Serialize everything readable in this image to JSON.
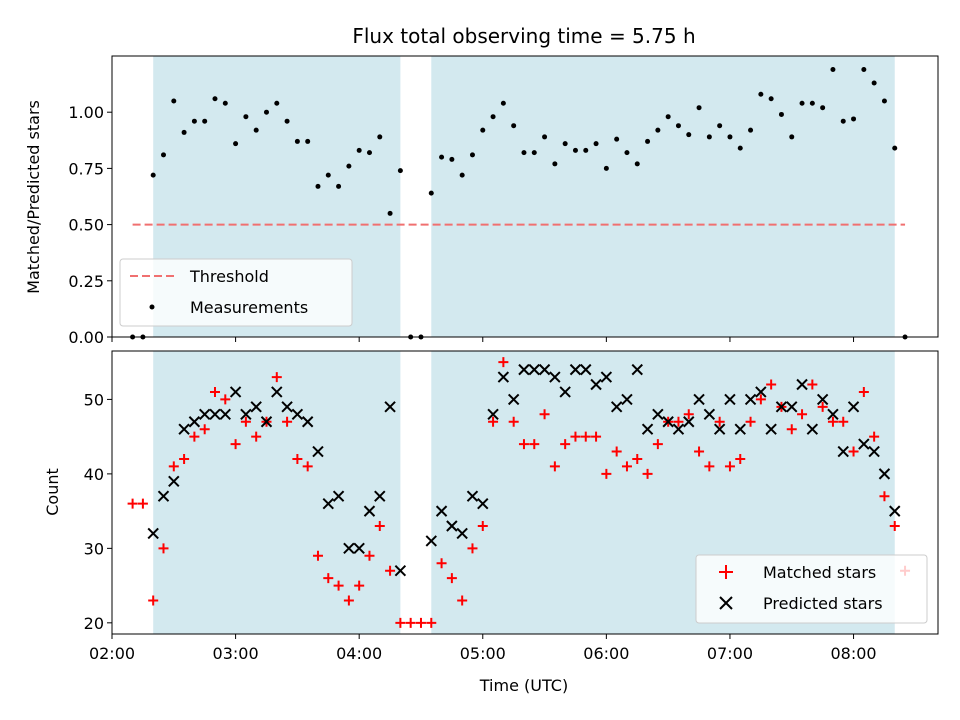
{
  "chart_data": [
    {
      "type": "scatter",
      "title": "Flux total observing time = 5.75 h",
      "xlabel": "",
      "ylabel": "Matched/Predicted stars",
      "xlim": [
        "02:00",
        "08:41"
      ],
      "ylim": [
        0,
        1.25
      ],
      "x_tick_labels": [],
      "y_ticks": [
        "0.00",
        "0.25",
        "0.50",
        "0.75",
        "1.00"
      ],
      "observing_windows": [
        [
          "02:20",
          "04:20"
        ],
        [
          "04:35",
          "08:20"
        ]
      ],
      "window_color": "#d3e9ef",
      "grid": false,
      "legend_position": "lower-left",
      "series": [
        {
          "name": "Threshold",
          "style": "dashed-line",
          "color": "#f07070",
          "x": [
            "02:10",
            "08:25"
          ],
          "y": [
            0.5,
            0.5
          ]
        },
        {
          "name": "Measurements",
          "style": "dot",
          "color": "#000000",
          "x": [
            "02:10",
            "02:15",
            "02:20",
            "02:25",
            "02:30",
            "02:35",
            "02:40",
            "02:45",
            "02:50",
            "02:55",
            "03:00",
            "03:05",
            "03:10",
            "03:15",
            "03:20",
            "03:25",
            "03:30",
            "03:35",
            "03:40",
            "03:45",
            "03:50",
            "03:55",
            "04:00",
            "04:05",
            "04:10",
            "04:15",
            "04:20",
            "04:25",
            "04:30",
            "04:35",
            "04:40",
            "04:45",
            "04:50",
            "04:55",
            "05:00",
            "05:05",
            "05:10",
            "05:15",
            "05:20",
            "05:25",
            "05:30",
            "05:35",
            "05:40",
            "05:45",
            "05:50",
            "05:55",
            "06:00",
            "06:05",
            "06:10",
            "06:15",
            "06:20",
            "06:25",
            "06:30",
            "06:35",
            "06:40",
            "06:45",
            "06:50",
            "06:55",
            "07:00",
            "07:05",
            "07:10",
            "07:15",
            "07:20",
            "07:25",
            "07:30",
            "07:35",
            "07:40",
            "07:45",
            "07:50",
            "07:55",
            "08:00",
            "08:05",
            "08:10",
            "08:15",
            "08:20",
            "08:25"
          ],
          "y": [
            0.0,
            0.0,
            0.72,
            0.81,
            1.05,
            0.91,
            0.96,
            0.96,
            1.06,
            1.04,
            0.86,
            0.98,
            0.92,
            1.0,
            1.04,
            0.96,
            0.87,
            0.87,
            0.67,
            0.72,
            0.67,
            0.76,
            0.83,
            0.82,
            0.89,
            0.55,
            0.74,
            0.0,
            0.0,
            0.64,
            0.8,
            0.79,
            0.72,
            0.81,
            0.92,
            0.98,
            1.04,
            0.94,
            0.82,
            0.82,
            0.89,
            0.77,
            0.86,
            0.83,
            0.83,
            0.86,
            0.75,
            0.88,
            0.82,
            0.77,
            0.87,
            0.92,
            0.98,
            0.94,
            0.9,
            1.02,
            0.89,
            0.94,
            0.89,
            0.84,
            0.92,
            1.08,
            1.06,
            0.99,
            0.89,
            1.04,
            1.04,
            1.02,
            1.19,
            0.96,
            0.97,
            1.19,
            1.13,
            1.05,
            0.84,
            0.0
          ]
        }
      ]
    },
    {
      "type": "scatter",
      "title": "",
      "xlabel": "Time (UTC)",
      "ylabel": "Count",
      "xlim": [
        "02:00",
        "08:41"
      ],
      "ylim": [
        18.5,
        56.5
      ],
      "x_tick_labels": [
        "02:00",
        "03:00",
        "04:00",
        "05:00",
        "06:00",
        "07:00",
        "08:00"
      ],
      "y_ticks": [
        "20",
        "30",
        "40",
        "50"
      ],
      "observing_windows": [
        [
          "02:20",
          "04:20"
        ],
        [
          "04:35",
          "08:20"
        ]
      ],
      "window_color": "#d3e9ef",
      "grid": false,
      "legend_position": "lower-right",
      "series": [
        {
          "name": "Matched stars",
          "style": "plus",
          "color": "#ff0000",
          "x": [
            "02:10",
            "02:15",
            "02:20",
            "02:25",
            "02:30",
            "02:35",
            "02:40",
            "02:45",
            "02:50",
            "02:55",
            "03:00",
            "03:05",
            "03:10",
            "03:15",
            "03:20",
            "03:25",
            "03:30",
            "03:35",
            "03:40",
            "03:45",
            "03:50",
            "03:55",
            "04:00",
            "04:05",
            "04:10",
            "04:15",
            "04:20",
            "04:25",
            "04:30",
            "04:35",
            "04:40",
            "04:45",
            "04:50",
            "04:55",
            "05:00",
            "05:05",
            "05:10",
            "05:15",
            "05:20",
            "05:25",
            "05:30",
            "05:35",
            "05:40",
            "05:45",
            "05:50",
            "05:55",
            "06:00",
            "06:05",
            "06:10",
            "06:15",
            "06:20",
            "06:25",
            "06:30",
            "06:35",
            "06:40",
            "06:45",
            "06:50",
            "06:55",
            "07:00",
            "07:05",
            "07:10",
            "07:15",
            "07:20",
            "07:25",
            "07:30",
            "07:35",
            "07:40",
            "07:45",
            "07:50",
            "07:55",
            "08:00",
            "08:05",
            "08:10",
            "08:15",
            "08:20",
            "08:25"
          ],
          "y": [
            36,
            36,
            23,
            30,
            41,
            42,
            45,
            46,
            51,
            50,
            44,
            47,
            45,
            47,
            53,
            47,
            42,
            41,
            29,
            26,
            25,
            23,
            25,
            29,
            33,
            27,
            20,
            20,
            20,
            20,
            28,
            26,
            23,
            30,
            33,
            47,
            55,
            47,
            44,
            44,
            48,
            41,
            44,
            45,
            45,
            45,
            40,
            43,
            41,
            42,
            40,
            44,
            47,
            47,
            48,
            43,
            41,
            47,
            41,
            42,
            47,
            50,
            52,
            49,
            46,
            48,
            52,
            49,
            47,
            47,
            43,
            51,
            45,
            37,
            33,
            27
          ]
        },
        {
          "name": "Predicted stars",
          "style": "cross",
          "color": "#000000",
          "x": [
            "02:20",
            "02:25",
            "02:30",
            "02:35",
            "02:40",
            "02:45",
            "02:50",
            "02:55",
            "03:00",
            "03:05",
            "03:10",
            "03:15",
            "03:20",
            "03:25",
            "03:30",
            "03:35",
            "03:40",
            "03:45",
            "03:50",
            "03:55",
            "04:00",
            "04:05",
            "04:10",
            "04:15",
            "04:20",
            "04:35",
            "04:40",
            "04:45",
            "04:50",
            "04:55",
            "05:00",
            "05:05",
            "05:10",
            "05:15",
            "05:20",
            "05:25",
            "05:30",
            "05:35",
            "05:40",
            "05:45",
            "05:50",
            "05:55",
            "06:00",
            "06:05",
            "06:10",
            "06:15",
            "06:20",
            "06:25",
            "06:30",
            "06:35",
            "06:40",
            "06:45",
            "06:50",
            "06:55",
            "07:00",
            "07:05",
            "07:10",
            "07:15",
            "07:20",
            "07:25",
            "07:30",
            "07:35",
            "07:40",
            "07:45",
            "07:50",
            "07:55",
            "08:00",
            "08:05",
            "08:10",
            "08:15",
            "08:20"
          ],
          "y": [
            32,
            37,
            39,
            46,
            47,
            48,
            48,
            48,
            51,
            48,
            49,
            47,
            51,
            49,
            48,
            47,
            43,
            36,
            37,
            30,
            30,
            35,
            37,
            49,
            27,
            31,
            35,
            33,
            32,
            37,
            36,
            48,
            53,
            50,
            54,
            54,
            54,
            53,
            51,
            54,
            54,
            52,
            53,
            49,
            50,
            54,
            46,
            48,
            47,
            46,
            47,
            50,
            48,
            46,
            50,
            46,
            50,
            51,
            46,
            49,
            49,
            52,
            46,
            50,
            48,
            43,
            49,
            44,
            43,
            40,
            35
          ]
        }
      ]
    }
  ]
}
